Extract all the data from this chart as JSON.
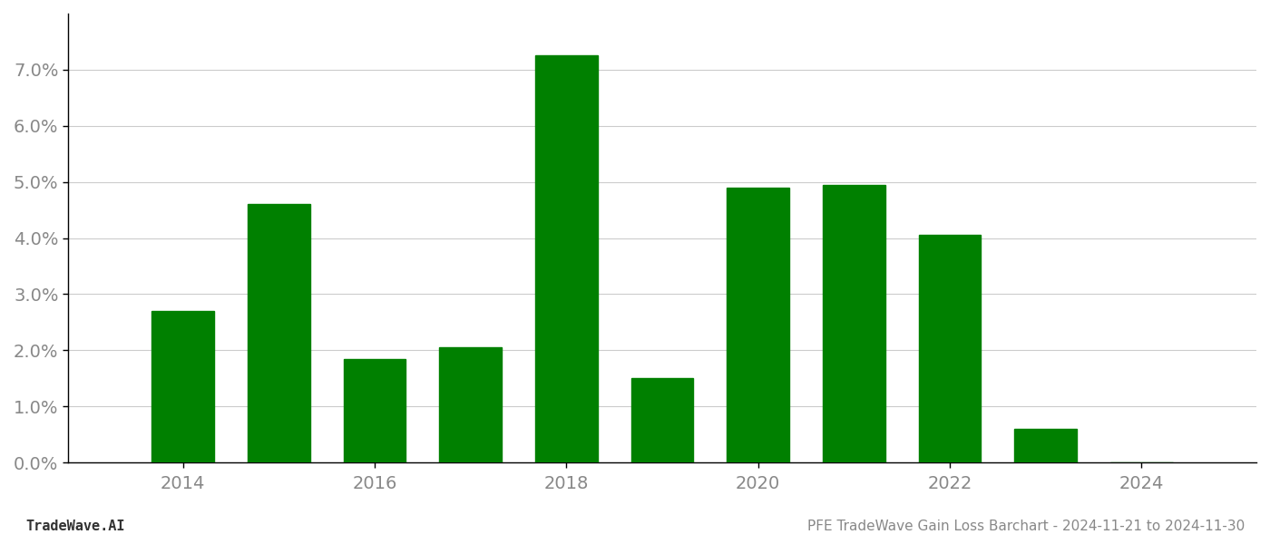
{
  "years": [
    2014,
    2015,
    2016,
    2017,
    2018,
    2019,
    2020,
    2021,
    2022,
    2023,
    2024
  ],
  "values": [
    0.027,
    0.046,
    0.0185,
    0.0205,
    0.0725,
    0.015,
    0.049,
    0.0495,
    0.0405,
    0.006,
    0.0
  ],
  "bar_color": "#008000",
  "background_color": "#ffffff",
  "grid_color": "#cccccc",
  "footer_left": "TradeWave.AI",
  "footer_right": "PFE TradeWave Gain Loss Barchart - 2024-11-21 to 2024-11-30",
  "ylim": [
    0,
    0.08
  ],
  "yticks": [
    0.0,
    0.01,
    0.02,
    0.03,
    0.04,
    0.05,
    0.06,
    0.07
  ],
  "ytick_labels": [
    "0.0%",
    "1.0%",
    "2.0%",
    "3.0%",
    "4.0%",
    "5.0%",
    "6.0%",
    "7.0%"
  ],
  "xtick_labels": [
    "2014",
    "2016",
    "2018",
    "2020",
    "2022",
    "2024"
  ],
  "xticks": [
    2014,
    2016,
    2018,
    2020,
    2022,
    2024
  ],
  "bar_width": 0.65,
  "footer_fontsize": 11,
  "tick_fontsize": 14,
  "grid_alpha": 1.0,
  "spine_color": "#000000",
  "tick_color": "#888888",
  "xlim_left": 2012.8,
  "xlim_right": 2025.2
}
